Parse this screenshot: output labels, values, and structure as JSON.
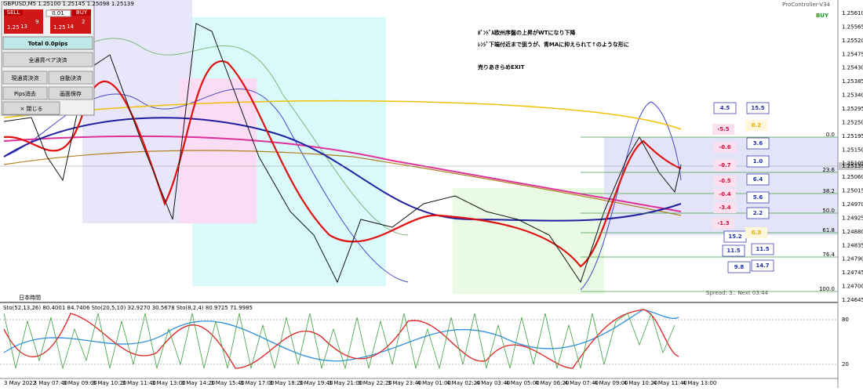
{
  "header": {
    "symbol_info": "GBPUSD,M5  1.25100 1.25145 1.25098 1.25139",
    "tool_name": "ProController-V34",
    "signal": "BUY"
  },
  "panel": {
    "sell": "SELL",
    "buy": "BUY",
    "lot": "0.01",
    "sell_big": "1.25",
    "sell_pips": "13",
    "sell_frac": "9",
    "buy_big": "1.25",
    "buy_pips": "14",
    "buy_frac": "2",
    "total": "Total   0.0pips",
    "close_all": "全通貨ペア決済",
    "close_current": "現通貨決済",
    "auto_close": "自動決済",
    "pips_clear": "Pips消去",
    "save_screen": "画面保存",
    "close": "× 閉じる"
  },
  "annotation": [
    "ﾎﾟﾝﾄﾞﾙ欧州序盤の上昇がWTになり下降",
    "ﾚﾝｼﾞ下端付近まで狙うが、青MAに抑えられて↑のような形に",
    "売りあきらめEXIT"
  ],
  "price_axis": [
    "1.25610",
    "1.25565",
    "1.25520",
    "1.25475",
    "1.25430",
    "1.25385",
    "1.25340",
    "1.25295",
    "1.25250",
    "1.25195",
    "1.25150",
    "1.25105",
    "1.25060",
    "1.25015",
    "1.24970",
    "1.24925",
    "1.24880",
    "1.24835",
    "1.24790",
    "1.24745",
    "1.24700",
    "1.24645"
  ],
  "current_price": "1.25139",
  "time_axis": [
    "3 May 2022",
    "3 May 07:40",
    "3 May 09:00",
    "3 May 10:20",
    "3 May 11:40",
    "3 May 13:00",
    "3 May 14:20",
    "3 May 15:40",
    "3 May 17:00",
    "3 May 18:20",
    "3 May 19:40",
    "3 May 21:00",
    "3 May 22:20",
    "3 May 23:40",
    "4 May 01:00",
    "4 May 02:20",
    "4 May 03:40",
    "4 May 05:00",
    "4 May 06:20",
    "4 May 07:40",
    "4 May 09:00",
    "4 May 10:20",
    "4 May 11:40",
    "4 May 13:00"
  ],
  "fib_levels": [
    "0.0",
    "23.6",
    "38.2",
    "50.0",
    "61.8",
    "76.4",
    "100.0"
  ],
  "left_values": [
    "4.5",
    "-5.5",
    "-0.6",
    "-0.7",
    "-0.5",
    "-0.4",
    "-3.4",
    "-1.3",
    "15.2",
    "11.5",
    "9.8"
  ],
  "right_values": [
    "15.5",
    "0.2",
    "3.6",
    "1.0",
    "6.4",
    "5.6",
    "2.2",
    "0.3",
    "11.5",
    "14.7"
  ],
  "spread": "Spread: 3.. Next 03:44",
  "timezone": "日本時間",
  "indicator_label": "Sto(52,13,26) 80.4001 84.7406  Sto(20,5,10) 32.9270 30.5678  Sto(8,2,4) 80.9725 71.9985",
  "stoch_levels": [
    "80",
    "20"
  ]
}
